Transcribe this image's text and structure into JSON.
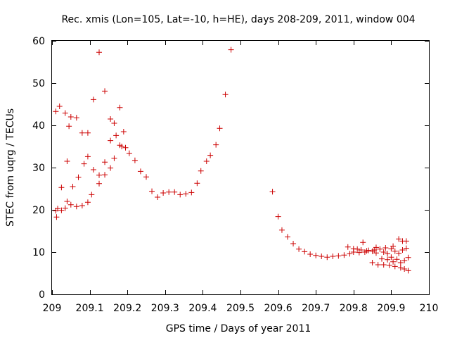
{
  "chart_data": {
    "type": "scatter",
    "title": "Rec. xmis (Lon=105, Lat=-10, h=HE), days 208-209, 2011, window 004",
    "xlabel": "GPS time / Days of year 2011",
    "ylabel": "STEC from uqrg / TECUs",
    "xlim": [
      209,
      210
    ],
    "ylim": [
      0,
      60
    ],
    "x_ticks": [
      "209",
      "209.1",
      "209.2",
      "209.3",
      "209.4",
      "209.5",
      "209.6",
      "209.7",
      "209.8",
      "209.9",
      "210"
    ],
    "y_ticks": [
      "0",
      "10",
      "20",
      "30",
      "40",
      "50",
      "60"
    ],
    "marker": "plus",
    "color": "#cc0000",
    "grid": false,
    "legend": "none",
    "points": [
      {
        "x": 209.01,
        "y": 43.3
      },
      {
        "x": 209.02,
        "y": 44.5
      },
      {
        "x": 209.035,
        "y": 42.9
      },
      {
        "x": 209.045,
        "y": 39.8
      },
      {
        "x": 209.05,
        "y": 42.0
      },
      {
        "x": 209.065,
        "y": 41.8
      },
      {
        "x": 209.08,
        "y": 38.2
      },
      {
        "x": 209.095,
        "y": 38.2
      },
      {
        "x": 209.11,
        "y": 46.1
      },
      {
        "x": 209.125,
        "y": 57.3
      },
      {
        "x": 209.14,
        "y": 48.1
      },
      {
        "x": 209.155,
        "y": 41.5
      },
      {
        "x": 209.165,
        "y": 40.5
      },
      {
        "x": 209.18,
        "y": 44.2
      },
      {
        "x": 209.19,
        "y": 38.5
      },
      {
        "x": 209.01,
        "y": 19.8
      },
      {
        "x": 209.012,
        "y": 18.3
      },
      {
        "x": 209.015,
        "y": 20.3
      },
      {
        "x": 209.025,
        "y": 19.9
      },
      {
        "x": 209.035,
        "y": 20.4
      },
      {
        "x": 209.05,
        "y": 21.2
      },
      {
        "x": 209.065,
        "y": 20.8
      },
      {
        "x": 209.08,
        "y": 21.0
      },
      {
        "x": 209.095,
        "y": 21.8
      },
      {
        "x": 209.105,
        "y": 23.6
      },
      {
        "x": 209.025,
        "y": 25.3
      },
      {
        "x": 209.04,
        "y": 22.0
      },
      {
        "x": 209.055,
        "y": 25.5
      },
      {
        "x": 209.04,
        "y": 31.5
      },
      {
        "x": 209.07,
        "y": 27.7
      },
      {
        "x": 209.085,
        "y": 30.9
      },
      {
        "x": 209.095,
        "y": 32.6
      },
      {
        "x": 209.11,
        "y": 29.5
      },
      {
        "x": 209.125,
        "y": 26.2
      },
      {
        "x": 209.125,
        "y": 28.2
      },
      {
        "x": 209.14,
        "y": 28.3
      },
      {
        "x": 209.14,
        "y": 31.3
      },
      {
        "x": 209.155,
        "y": 29.9
      },
      {
        "x": 209.155,
        "y": 36.4
      },
      {
        "x": 209.165,
        "y": 32.2
      },
      {
        "x": 209.17,
        "y": 37.6
      },
      {
        "x": 209.18,
        "y": 35.3
      },
      {
        "x": 209.185,
        "y": 35.0
      },
      {
        "x": 209.195,
        "y": 34.7
      },
      {
        "x": 209.205,
        "y": 33.4
      },
      {
        "x": 209.22,
        "y": 31.7
      },
      {
        "x": 209.235,
        "y": 29.1
      },
      {
        "x": 209.25,
        "y": 27.8
      },
      {
        "x": 209.265,
        "y": 24.4
      },
      {
        "x": 209.28,
        "y": 23.0
      },
      {
        "x": 209.295,
        "y": 24.0
      },
      {
        "x": 209.31,
        "y": 24.2
      },
      {
        "x": 209.325,
        "y": 24.2
      },
      {
        "x": 209.34,
        "y": 23.6
      },
      {
        "x": 209.355,
        "y": 23.8
      },
      {
        "x": 209.37,
        "y": 24.1
      },
      {
        "x": 209.385,
        "y": 26.3
      },
      {
        "x": 209.395,
        "y": 29.2
      },
      {
        "x": 209.41,
        "y": 31.5
      },
      {
        "x": 209.42,
        "y": 32.9
      },
      {
        "x": 209.435,
        "y": 35.4
      },
      {
        "x": 209.445,
        "y": 39.3
      },
      {
        "x": 209.46,
        "y": 47.3
      },
      {
        "x": 209.475,
        "y": 57.9
      },
      {
        "x": 209.585,
        "y": 24.3
      },
      {
        "x": 209.6,
        "y": 18.4
      },
      {
        "x": 209.61,
        "y": 15.2
      },
      {
        "x": 209.625,
        "y": 13.6
      },
      {
        "x": 209.64,
        "y": 12.0
      },
      {
        "x": 209.655,
        "y": 10.7
      },
      {
        "x": 209.67,
        "y": 10.1
      },
      {
        "x": 209.685,
        "y": 9.5
      },
      {
        "x": 209.7,
        "y": 9.2
      },
      {
        "x": 209.715,
        "y": 9.0
      },
      {
        "x": 209.73,
        "y": 8.8
      },
      {
        "x": 209.745,
        "y": 9.0
      },
      {
        "x": 209.76,
        "y": 9.1
      },
      {
        "x": 209.775,
        "y": 9.3
      },
      {
        "x": 209.785,
        "y": 11.2
      },
      {
        "x": 209.79,
        "y": 9.6
      },
      {
        "x": 209.8,
        "y": 10.0
      },
      {
        "x": 209.8,
        "y": 10.8
      },
      {
        "x": 209.81,
        "y": 10.7
      },
      {
        "x": 209.815,
        "y": 9.9
      },
      {
        "x": 209.82,
        "y": 10.5
      },
      {
        "x": 209.825,
        "y": 12.3
      },
      {
        "x": 209.83,
        "y": 10.0
      },
      {
        "x": 209.835,
        "y": 10.3
      },
      {
        "x": 209.84,
        "y": 10.4
      },
      {
        "x": 209.85,
        "y": 10.2
      },
      {
        "x": 209.85,
        "y": 7.5
      },
      {
        "x": 209.855,
        "y": 10.5
      },
      {
        "x": 209.86,
        "y": 11.1
      },
      {
        "x": 209.86,
        "y": 9.8
      },
      {
        "x": 209.865,
        "y": 7.0
      },
      {
        "x": 209.87,
        "y": 10.7
      },
      {
        "x": 209.875,
        "y": 8.4
      },
      {
        "x": 209.88,
        "y": 10.0
      },
      {
        "x": 209.88,
        "y": 7.0
      },
      {
        "x": 209.885,
        "y": 11.0
      },
      {
        "x": 209.89,
        "y": 9.6
      },
      {
        "x": 209.89,
        "y": 8.2
      },
      {
        "x": 209.895,
        "y": 6.9
      },
      {
        "x": 209.9,
        "y": 10.8
      },
      {
        "x": 209.9,
        "y": 8.8
      },
      {
        "x": 209.905,
        "y": 7.7
      },
      {
        "x": 209.905,
        "y": 11.4
      },
      {
        "x": 209.91,
        "y": 10.2
      },
      {
        "x": 209.91,
        "y": 6.6
      },
      {
        "x": 209.915,
        "y": 8.3
      },
      {
        "x": 209.92,
        "y": 13.1
      },
      {
        "x": 209.92,
        "y": 9.7
      },
      {
        "x": 209.925,
        "y": 7.5
      },
      {
        "x": 209.925,
        "y": 6.3
      },
      {
        "x": 209.93,
        "y": 10.5
      },
      {
        "x": 209.93,
        "y": 12.6
      },
      {
        "x": 209.935,
        "y": 8.0
      },
      {
        "x": 209.935,
        "y": 6.0
      },
      {
        "x": 209.94,
        "y": 10.9
      },
      {
        "x": 209.94,
        "y": 12.6
      },
      {
        "x": 209.945,
        "y": 8.7
      },
      {
        "x": 209.945,
        "y": 5.6
      }
    ]
  }
}
